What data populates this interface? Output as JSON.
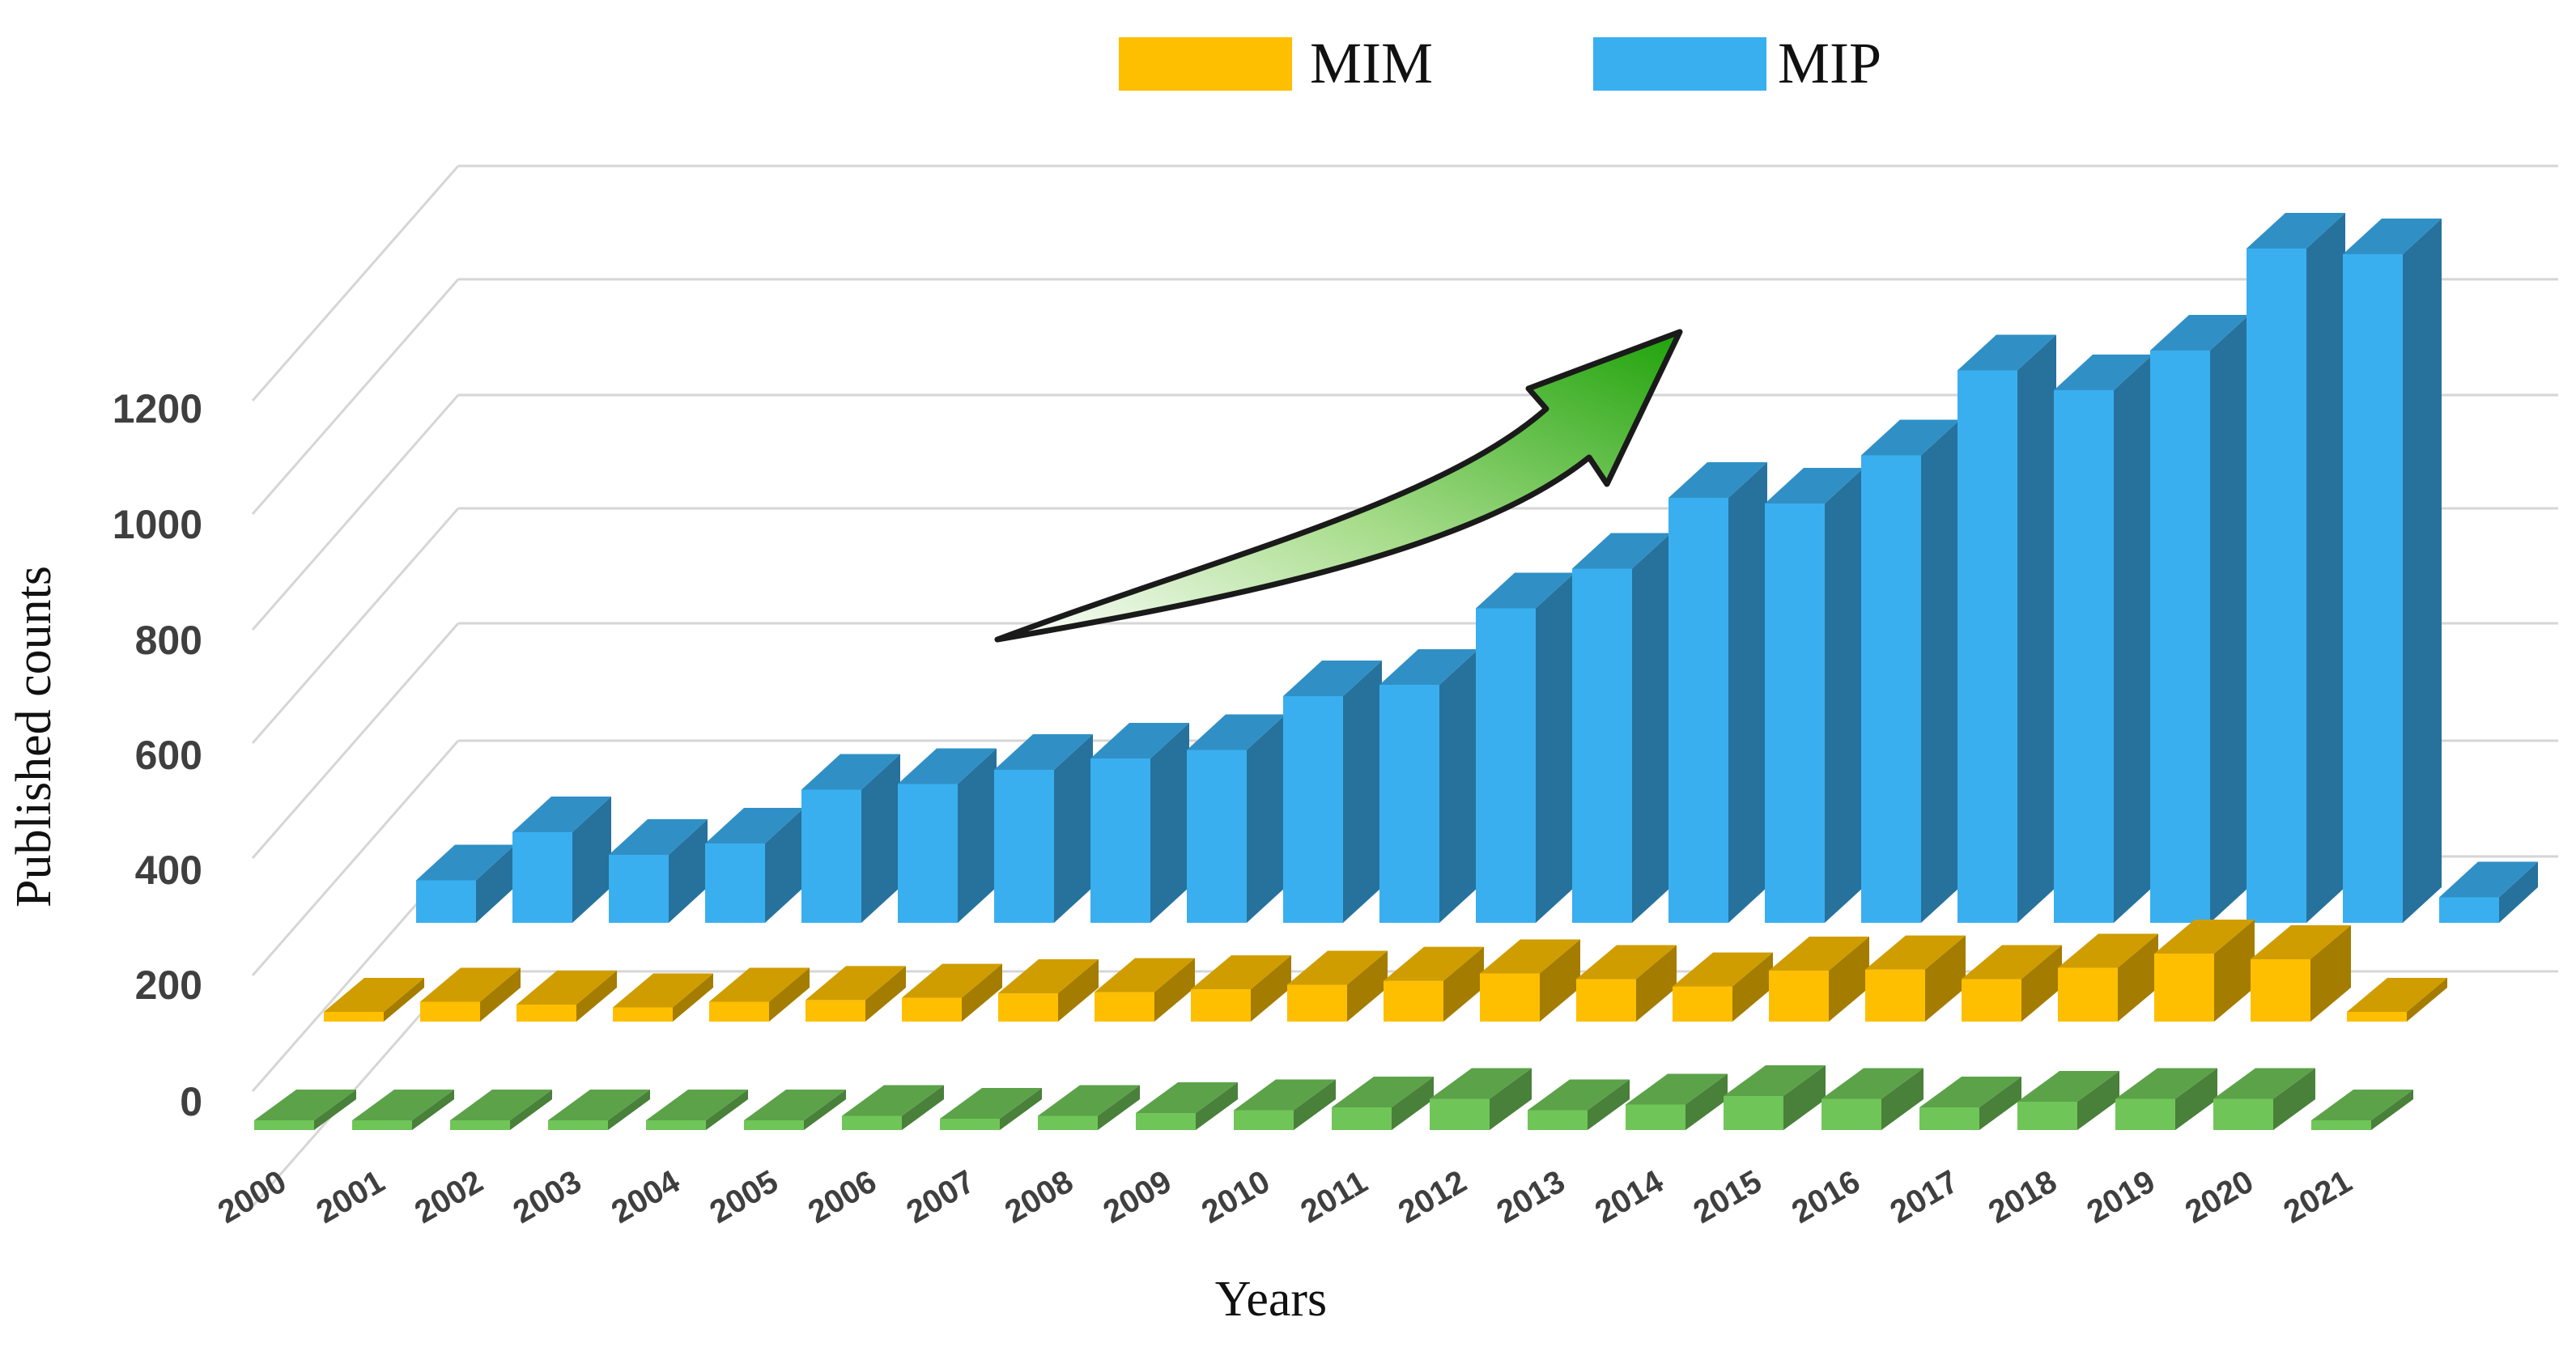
{
  "chart_data": {
    "type": "bar",
    "style": "3d-stacked-rows",
    "title": "",
    "xlabel": "Years",
    "ylabel": "Published counts",
    "yticks": [
      "0",
      "200",
      "400",
      "600",
      "800",
      "1000",
      "1200"
    ],
    "categories": [
      "2000",
      "2001",
      "2002",
      "2003",
      "2004",
      "2005",
      "2006",
      "2007",
      "2008",
      "2009",
      "2010",
      "2011",
      "2012",
      "2013",
      "2014",
      "2015",
      "2016",
      "2017",
      "2018",
      "2019",
      "2020",
      "2021"
    ],
    "legend_position": "top-center",
    "series": [
      {
        "name": "MIM",
        "color": "#FDBF00",
        "values": [
          5,
          35,
          30,
          25,
          35,
          38,
          42,
          50,
          52,
          57,
          65,
          72,
          85,
          75,
          62,
          90,
          92,
          75,
          95,
          120,
          110,
          5
        ]
      },
      {
        "name": "MIP",
        "color": "#3AAFF0",
        "values": [
          75,
          160,
          120,
          140,
          235,
          245,
          270,
          290,
          305,
          400,
          420,
          555,
          625,
          750,
          740,
          825,
          975,
          940,
          1010,
          1190,
          1180,
          45
        ]
      },
      {
        "name": "",
        "color": "#70C559",
        "values": [
          2,
          2,
          2,
          2,
          2,
          3,
          25,
          20,
          25,
          30,
          35,
          40,
          55,
          35,
          45,
          60,
          55,
          40,
          50,
          55,
          55,
          2
        ]
      }
    ],
    "annotation": "upward green trend arrow"
  },
  "legend": [
    {
      "label": "MIM",
      "color": "#FDBF00"
    },
    {
      "label": "MIP",
      "color": "#3AAFF0"
    }
  ]
}
